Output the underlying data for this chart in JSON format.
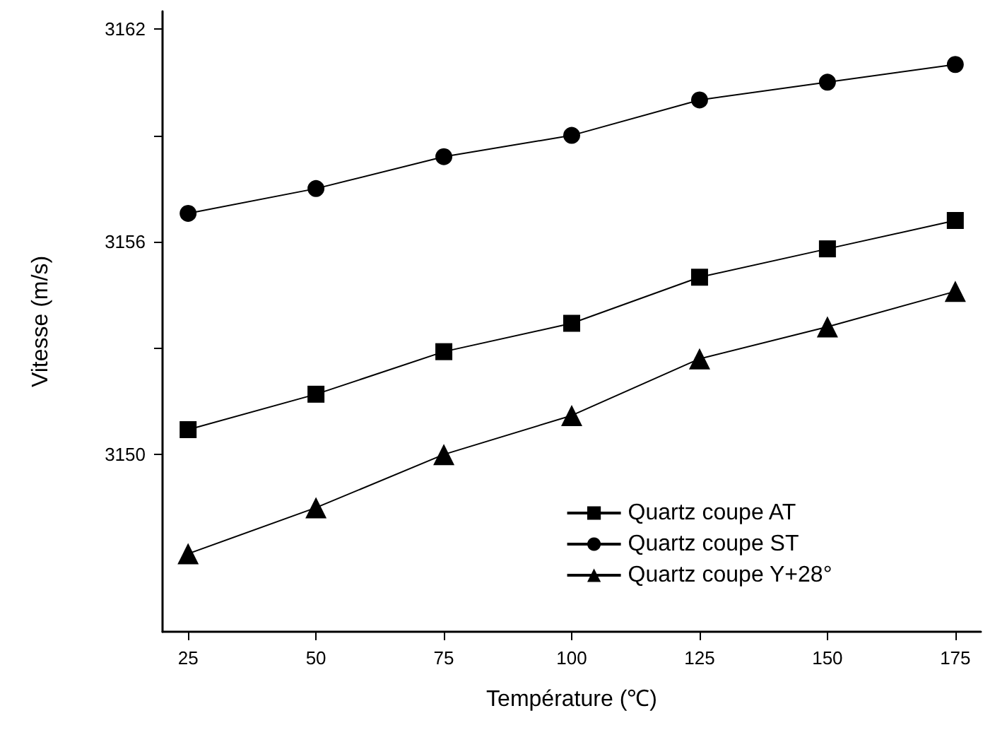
{
  "chart_data": {
    "type": "line",
    "xlabel": "Température (℃)",
    "ylabel": "Vitesse (m/s)",
    "x": [
      25,
      50,
      75,
      100,
      125,
      150,
      175
    ],
    "series": [
      {
        "name": "Quartz coupe AT",
        "color": "#000000",
        "marker": "square",
        "values": [
          3150.7,
          3151.7,
          3152.9,
          3153.7,
          3155.0,
          3155.8,
          3156.6
        ]
      },
      {
        "name": "Quartz coupe ST",
        "color": "#000000",
        "marker": "circle",
        "values": [
          3156.8,
          3157.5,
          3158.4,
          3159.0,
          3160.0,
          3160.5,
          3161.0
        ]
      },
      {
        "name": "Quartz coupe Y+28°",
        "color": "#000000",
        "marker": "triangle",
        "values": [
          3147.2,
          3148.5,
          3150.0,
          3151.1,
          3152.7,
          3153.6,
          3154.6
        ]
      }
    ],
    "xlim": [
      20,
      180
    ],
    "xticks": [
      25,
      50,
      75,
      100,
      125,
      150,
      175
    ],
    "ylim": [
      3145,
      3162.5
    ],
    "yticks": [
      3150,
      3156,
      3162
    ],
    "grid": false,
    "legend": "bottom right",
    "line_style": "solid"
  }
}
